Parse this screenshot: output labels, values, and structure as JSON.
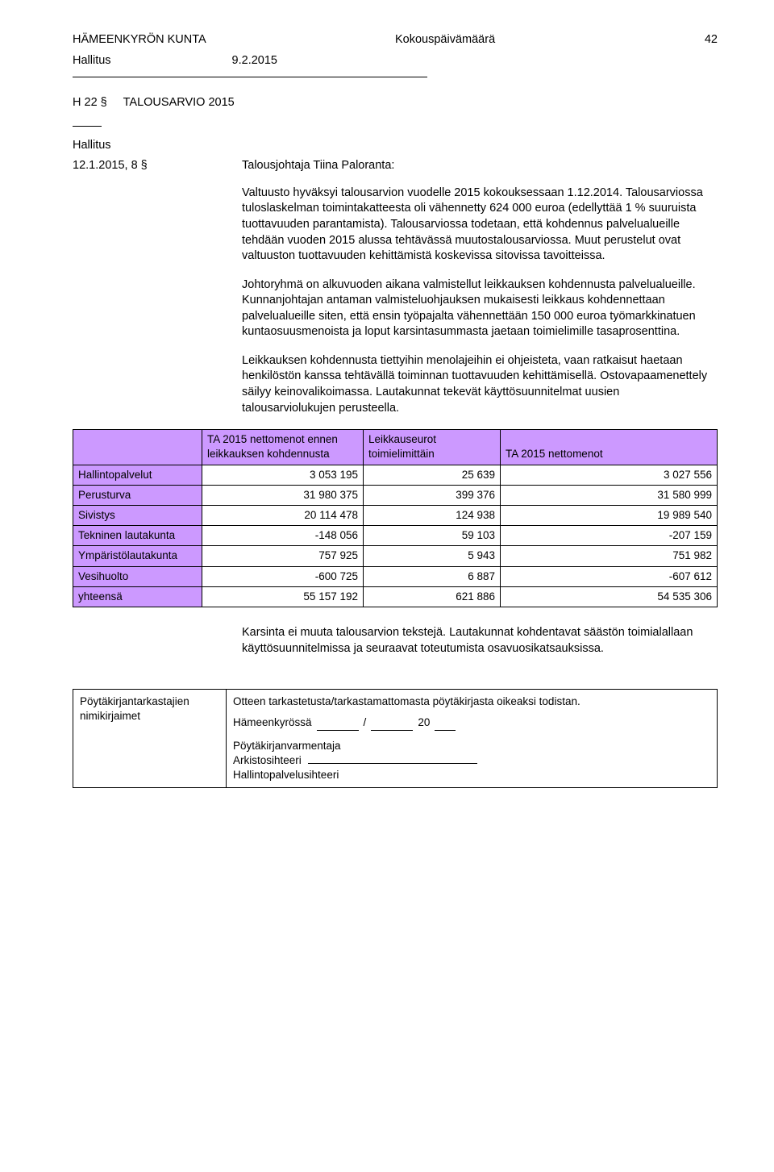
{
  "header": {
    "org": "HÄMEENKYRÖN KUNTA",
    "center": "Kokouspäivämäärä",
    "page": "42"
  },
  "subheader": {
    "body": "Hallitus",
    "date": "9.2.2015"
  },
  "title": {
    "code": "H  22 §",
    "text": "TALOUSARVIO 2015"
  },
  "meeting": {
    "body": "Hallitus",
    "ref": "12.1.2015, 8 §",
    "presenter": "Talousjohtaja Tiina Paloranta:"
  },
  "paragraphs": {
    "p1": "Valtuusto hyväksyi talousarvion vuodelle 2015 kokouksessaan 1.12.2014. Talousarviossa tuloslaskelman toimintakatteesta oli vähennetty 624 000 euroa (edellyttää 1 % suuruista tuottavuuden parantamista). Talousarviossa todetaan, että kohdennus palvelualueille tehdään vuoden 2015 alussa tehtävässä muutostalousarviossa. Muut perustelut ovat valtuuston tuottavuuden kehittämistä koskevissa sitovissa tavoitteissa.",
    "p2": "Johtoryhmä on alkuvuoden aikana valmistellut leikkauksen kohdennusta palvelualueille. Kunnanjohtajan antaman valmisteluohjauksen mukaisesti leikkaus kohdennettaan palvelualueille siten, että ensin työpajalta vähennettään 150 000 euroa työmarkkinatuen kuntaosuusmenoista ja loput karsintasummasta jaetaan toimielimille tasaprosenttina.",
    "p3": "Leikkauksen kohdennusta tiettyihin menolajeihin ei ohjeisteta, vaan ratkaisut haetaan henkilöstön kanssa tehtävällä toiminnan tuottavuuden kehittämisellä. Ostovapaamenettely säilyy keinovalikoimassa. Lautakunnat tekevät käyttösuunnitelmat uusien talousarviolukujen perusteella.",
    "p4": "Karsinta ei muuta talousarvion tekstejä. Lautakunnat kohdentavat säästön toimialallaan käyttösuunnitelmissa ja seuraavat toteutumista osavuosikatsauksissa."
  },
  "table": {
    "header_cell_bg": "#cc99ff",
    "columns": {
      "c0": "",
      "c1": "TA 2015  nettomenot ennen leikkauksen kohdennusta",
      "c2": "Leikkauseurot toimielimittäin",
      "c3": "TA 2015 nettomenot"
    },
    "rows": [
      {
        "label": "Hallintopalvelut",
        "v1": "3 053 195",
        "v2": "25 639",
        "v3": "3 027 556"
      },
      {
        "label": "Perusturva",
        "v1": "31 980 375",
        "v2": "399 376",
        "v3": "31 580 999"
      },
      {
        "label": "Sivistys",
        "v1": "20 114 478",
        "v2": "124 938",
        "v3": "19 989 540"
      },
      {
        "label": "Tekninen lautakunta",
        "v1": "-148 056",
        "v2": "59 103",
        "v3": "-207 159"
      },
      {
        "label": "Ympäristölautakunta",
        "v1": "757 925",
        "v2": "5 943",
        "v3": "751 982"
      },
      {
        "label": "Vesihuolto",
        "v1": "-600 725",
        "v2": "6 887",
        "v3": "-607 612"
      },
      {
        "label": "yhteensä",
        "v1": "55 157 192",
        "v2": "621 886",
        "v3": "54 535 306"
      }
    ]
  },
  "footer": {
    "left1": "Pöytäkirjantarkastajien",
    "left2": "nimikirjaimet",
    "right1": "Otteen tarkastetusta/tarkastamattomasta pöytäkirjasta oikeaksi todistan.",
    "place": "Hämeenkyrössä",
    "year_prefix": "20",
    "r3": "Pöytäkirjanvarmentaja",
    "r4": "Arkistosihteeri",
    "r5": "Hallintopalvelusihteeri"
  }
}
